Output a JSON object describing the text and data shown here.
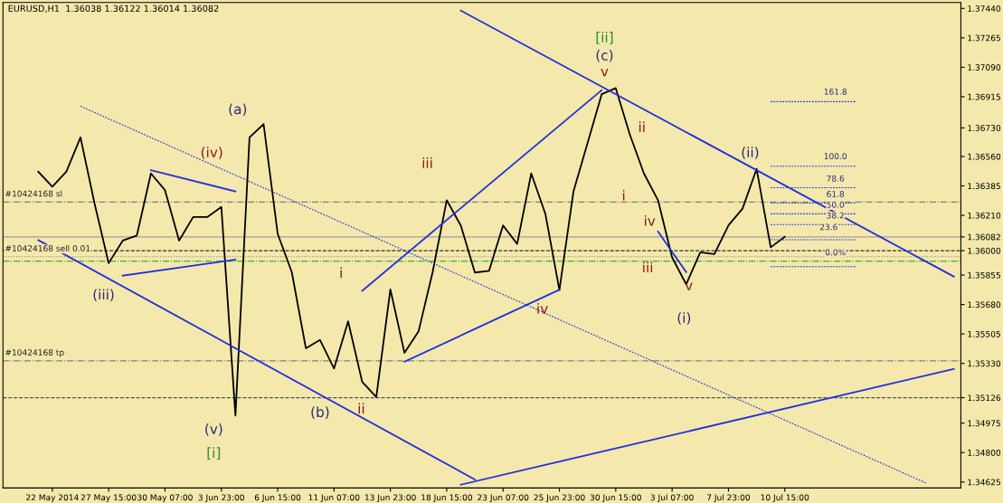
{
  "chart_data": {
    "type": "line",
    "title": "EURUSD,H1  1.36038 1.36122 1.36014 1.36082",
    "categories": [
      null,
      "22 May 2014",
      null,
      null,
      null,
      "27 May 15:00",
      null,
      null,
      null,
      "30 May 07:00",
      null,
      null,
      null,
      "3 Jun 23:00",
      null,
      null,
      null,
      "6 Jun 15:00",
      null,
      null,
      null,
      "11 Jun 07:00",
      null,
      null,
      null,
      "13 Jun 23:00",
      null,
      null,
      null,
      "18 Jun 15:00",
      null,
      null,
      null,
      "23 Jun 07:00",
      null,
      null,
      null,
      "25 Jun 23:00",
      null,
      null,
      null,
      "30 Jun 15:00",
      null,
      null,
      null,
      "3 Jul 07:00",
      null,
      null,
      null,
      "7 Jul 23:00",
      null,
      null,
      null,
      "10 Jul 15:00",
      null,
      null,
      null,
      null,
      null,
      null,
      null,
      null,
      null,
      null,
      null,
      null
    ],
    "ylim": [
      1.3459,
      1.37475
    ],
    "yticks": [
      {
        "value": 1.3744,
        "label": "1.37440"
      },
      {
        "value": 1.37265,
        "label": "1.37265"
      },
      {
        "value": 1.3709,
        "label": "1.37090"
      },
      {
        "value": 1.36915,
        "label": "1.36915"
      },
      {
        "value": 1.3673,
        "label": "1.36730"
      },
      {
        "value": 1.3656,
        "label": "1.36560"
      },
      {
        "value": 1.36385,
        "label": "1.36385"
      },
      {
        "value": 1.3621,
        "label": "1.36210"
      },
      {
        "value": 1.36082,
        "label": "1.36082"
      },
      {
        "value": 1.36,
        "label": "1.36000"
      },
      {
        "value": 1.35855,
        "label": "1.35855"
      },
      {
        "value": 1.3568,
        "label": "1.35680"
      },
      {
        "value": 1.35505,
        "label": "1.35505"
      },
      {
        "value": 1.3533,
        "label": "1.35330"
      },
      {
        "value": 1.35126,
        "label": "1.35126"
      },
      {
        "value": 1.34975,
        "label": "1.34975"
      },
      {
        "value": 1.348,
        "label": "1.34800"
      },
      {
        "value": 1.34625,
        "label": "1.34625"
      }
    ],
    "grid": false,
    "series": [
      {
        "color": "#000000",
        "values": [
          1.3647,
          1.3638,
          1.3647,
          1.36673,
          1.3628,
          1.35926,
          1.3606,
          1.3609,
          1.36459,
          1.3636,
          1.3606,
          1.362,
          1.362,
          1.3626,
          1.3502,
          1.36673,
          1.36752,
          1.361,
          1.35873,
          1.3542,
          1.3547,
          1.353,
          1.3558,
          1.3522,
          1.3513,
          1.3577,
          1.35393,
          1.3552,
          1.35873,
          1.363,
          1.3615,
          1.3587,
          1.3588,
          1.3615,
          1.3604,
          1.36459,
          1.3622,
          1.35766,
          1.36353,
          1.3664,
          1.3693,
          1.36966,
          1.3669,
          1.36459,
          1.363,
          1.3596,
          1.358,
          1.3599,
          1.3598,
          1.3615,
          1.3625,
          1.36486,
          1.3602,
          1.36082,
          null,
          null,
          null,
          null,
          null,
          null,
          null,
          null,
          null,
          null,
          null,
          null
        ]
      },
      {
        "color": "#1f2fdc",
        "values": [
          null,
          null,
          null,
          null,
          null,
          null,
          null,
          null,
          null,
          null,
          null,
          null,
          null,
          null,
          null,
          null,
          null,
          null,
          null,
          null,
          null,
          null,
          null,
          null,
          null,
          null,
          null,
          null,
          null,
          null,
          1.37427,
          null,
          null,
          null,
          null,
          null,
          null,
          null,
          null,
          null,
          null,
          null,
          null,
          null,
          null,
          null,
          null,
          null,
          null,
          null,
          null,
          null,
          null,
          null,
          null,
          null,
          null,
          null,
          null,
          null,
          null,
          null,
          null,
          null,
          null,
          1.35846
        ]
      },
      {
        "color": "#1f2fdc",
        "values": [
          1.36063,
          null,
          null,
          null,
          null,
          null,
          null,
          null,
          null,
          null,
          null,
          null,
          null,
          null,
          null,
          null,
          null,
          null,
          null,
          null,
          null,
          null,
          null,
          null,
          null,
          null,
          null,
          null,
          null,
          null,
          null,
          1.3464,
          null,
          null,
          null,
          null,
          null,
          null,
          null,
          null,
          null,
          null,
          null,
          null,
          null,
          null,
          null,
          null,
          null,
          null,
          null,
          null,
          null,
          null,
          null,
          null,
          null,
          null,
          null,
          null,
          null,
          null,
          null,
          null,
          null,
          null
        ]
      },
      {
        "color": "#1f2fdc",
        "values": [
          null,
          null,
          null,
          null,
          null,
          null,
          null,
          null,
          null,
          null,
          null,
          null,
          null,
          null,
          null,
          null,
          null,
          null,
          null,
          null,
          null,
          null,
          null,
          null,
          null,
          null,
          null,
          null,
          null,
          null,
          1.34609,
          null,
          null,
          null,
          null,
          null,
          null,
          null,
          null,
          null,
          null,
          null,
          null,
          null,
          null,
          null,
          null,
          null,
          null,
          null,
          null,
          null,
          null,
          null,
          null,
          null,
          null,
          null,
          null,
          null,
          null,
          null,
          null,
          null,
          null,
          1.35297
        ]
      },
      {
        "color": "#1f2fdc",
        "line_style": "dotted",
        "values": [
          null,
          null,
          null,
          1.36859,
          null,
          null,
          null,
          null,
          null,
          null,
          null,
          null,
          null,
          null,
          null,
          null,
          null,
          null,
          null,
          null,
          null,
          null,
          null,
          null,
          null,
          null,
          null,
          null,
          null,
          null,
          null,
          null,
          null,
          null,
          null,
          null,
          null,
          null,
          null,
          null,
          null,
          null,
          null,
          null,
          null,
          null,
          null,
          null,
          null,
          null,
          null,
          null,
          null,
          null,
          null,
          null,
          null,
          null,
          null,
          null,
          null,
          null,
          null,
          1.3462,
          null,
          null
        ]
      },
      {
        "color": "#1f2fdc",
        "values": [
          null,
          null,
          null,
          null,
          null,
          null,
          null,
          null,
          1.36479,
          null,
          null,
          null,
          null,
          null,
          1.36352,
          null,
          null,
          null,
          null,
          null,
          null,
          null,
          null,
          null,
          null,
          null,
          null,
          null,
          null,
          null,
          null,
          null,
          null,
          null,
          null,
          null,
          null,
          null,
          null,
          null,
          null,
          null,
          null,
          null,
          null,
          null,
          null,
          null,
          null,
          null,
          null,
          null,
          null,
          null,
          null,
          null,
          null,
          null,
          null,
          null,
          null,
          null,
          null,
          null,
          null,
          null
        ]
      },
      {
        "color": "#1f2fdc",
        "values": [
          null,
          null,
          null,
          null,
          null,
          null,
          1.35852,
          null,
          null,
          null,
          null,
          null,
          null,
          null,
          1.35947,
          null,
          null,
          null,
          null,
          null,
          null,
          null,
          null,
          null,
          null,
          null,
          null,
          null,
          null,
          null,
          null,
          null,
          null,
          null,
          null,
          null,
          null,
          null,
          null,
          null,
          null,
          null,
          null,
          null,
          null,
          null,
          null,
          null,
          null,
          null,
          null,
          null,
          null,
          null,
          null,
          null,
          null,
          null,
          null,
          null,
          null,
          null,
          null,
          null,
          null,
          null
        ]
      },
      {
        "color": "#1f2fdc",
        "values": [
          null,
          null,
          null,
          null,
          null,
          null,
          null,
          null,
          null,
          null,
          null,
          null,
          null,
          null,
          null,
          null,
          null,
          null,
          null,
          null,
          null,
          null,
          null,
          1.35762,
          null,
          null,
          null,
          null,
          null,
          null,
          null,
          null,
          null,
          null,
          null,
          null,
          null,
          null,
          null,
          null,
          1.36954,
          null,
          null,
          null,
          null,
          null,
          null,
          null,
          null,
          null,
          null,
          null,
          null,
          null,
          null,
          null,
          null,
          null,
          null,
          null,
          null,
          null,
          null,
          null,
          null,
          null
        ]
      },
      {
        "color": "#1f2fdc",
        "values": [
          null,
          null,
          null,
          null,
          null,
          null,
          null,
          null,
          null,
          null,
          null,
          null,
          null,
          null,
          null,
          null,
          null,
          null,
          null,
          null,
          null,
          null,
          null,
          null,
          null,
          null,
          1.3534,
          null,
          null,
          null,
          null,
          null,
          null,
          null,
          null,
          null,
          null,
          1.35768,
          null,
          null,
          null,
          null,
          null,
          null,
          null,
          null,
          null,
          null,
          null,
          null,
          null,
          null,
          null,
          null,
          null,
          null,
          null,
          null,
          null,
          null,
          null,
          null,
          null,
          null,
          null,
          null
        ]
      },
      {
        "color": "#1f2fdc",
        "values": [
          null,
          null,
          null,
          null,
          null,
          null,
          null,
          null,
          null,
          null,
          null,
          null,
          null,
          null,
          null,
          null,
          null,
          null,
          null,
          null,
          null,
          null,
          null,
          null,
          null,
          null,
          null,
          null,
          null,
          null,
          null,
          null,
          null,
          null,
          null,
          null,
          null,
          null,
          null,
          null,
          null,
          null,
          null,
          null,
          1.36113,
          null,
          1.35873,
          null,
          null,
          null,
          null,
          null,
          null,
          null,
          null,
          null,
          null,
          null,
          null,
          null,
          null,
          null,
          null,
          null,
          null,
          null
        ]
      },
      {
        "color": "#1f2fdc",
        "line_style": "dotted",
        "values": [
          null,
          null,
          null,
          null,
          null,
          null,
          null,
          null,
          null,
          null,
          null,
          null,
          null,
          null,
          null,
          null,
          null,
          null,
          null,
          null,
          null,
          null,
          null,
          null,
          null,
          null,
          null,
          null,
          null,
          null,
          null,
          null,
          null,
          null,
          null,
          null,
          null,
          null,
          null,
          null,
          null,
          null,
          null,
          null,
          null,
          null,
          null,
          null,
          null,
          null,
          null,
          null,
          1.36886,
          null,
          null,
          null,
          null,
          null,
          1.36886,
          null,
          null,
          null,
          null,
          null,
          null,
          null
        ]
      },
      {
        "color": "#1f2fdc",
        "line_style": "dotted",
        "values": [
          null,
          null,
          null,
          null,
          null,
          null,
          null,
          null,
          null,
          null,
          null,
          null,
          null,
          null,
          null,
          null,
          null,
          null,
          null,
          null,
          null,
          null,
          null,
          null,
          null,
          null,
          null,
          null,
          null,
          null,
          null,
          null,
          null,
          null,
          null,
          null,
          null,
          null,
          null,
          null,
          null,
          null,
          null,
          null,
          null,
          null,
          null,
          null,
          null,
          null,
          null,
          null,
          1.36502,
          null,
          null,
          null,
          null,
          null,
          1.36502,
          null,
          null,
          null,
          null,
          null,
          null,
          null
        ]
      },
      {
        "color": "#1f2fdc",
        "line_style": "dotted",
        "values": [
          null,
          null,
          null,
          null,
          null,
          null,
          null,
          null,
          null,
          null,
          null,
          null,
          null,
          null,
          null,
          null,
          null,
          null,
          null,
          null,
          null,
          null,
          null,
          null,
          null,
          null,
          null,
          null,
          null,
          null,
          null,
          null,
          null,
          null,
          null,
          null,
          null,
          null,
          null,
          null,
          null,
          null,
          null,
          null,
          null,
          null,
          null,
          null,
          null,
          null,
          null,
          null,
          1.36374,
          null,
          null,
          null,
          null,
          null,
          1.36374,
          null,
          null,
          null,
          null,
          null,
          null,
          null
        ]
      },
      {
        "color": "#1f2fdc",
        "line_style": "dotted",
        "values": [
          null,
          null,
          null,
          null,
          null,
          null,
          null,
          null,
          null,
          null,
          null,
          null,
          null,
          null,
          null,
          null,
          null,
          null,
          null,
          null,
          null,
          null,
          null,
          null,
          null,
          null,
          null,
          null,
          null,
          null,
          null,
          null,
          null,
          null,
          null,
          null,
          null,
          null,
          null,
          null,
          null,
          null,
          null,
          null,
          null,
          null,
          null,
          null,
          null,
          null,
          null,
          null,
          1.36283,
          null,
          null,
          null,
          null,
          null,
          1.36283,
          null,
          null,
          null,
          null,
          null,
          null,
          null
        ]
      },
      {
        "color": "#1f2fdc",
        "line_style": "dotted",
        "values": [
          null,
          null,
          null,
          null,
          null,
          null,
          null,
          null,
          null,
          null,
          null,
          null,
          null,
          null,
          null,
          null,
          null,
          null,
          null,
          null,
          null,
          null,
          null,
          null,
          null,
          null,
          null,
          null,
          null,
          null,
          null,
          null,
          null,
          null,
          null,
          null,
          null,
          null,
          null,
          null,
          null,
          null,
          null,
          null,
          null,
          null,
          null,
          null,
          null,
          null,
          null,
          null,
          1.36219,
          null,
          null,
          null,
          null,
          null,
          1.36219,
          null,
          null,
          null,
          null,
          null,
          null,
          null
        ]
      },
      {
        "color": "#1f2fdc",
        "line_style": "dotted",
        "values": [
          null,
          null,
          null,
          null,
          null,
          null,
          null,
          null,
          null,
          null,
          null,
          null,
          null,
          null,
          null,
          null,
          null,
          null,
          null,
          null,
          null,
          null,
          null,
          null,
          null,
          null,
          null,
          null,
          null,
          null,
          null,
          null,
          null,
          null,
          null,
          null,
          null,
          null,
          null,
          null,
          null,
          null,
          null,
          null,
          null,
          null,
          null,
          null,
          null,
          null,
          null,
          null,
          1.36155,
          null,
          null,
          null,
          null,
          null,
          1.36155,
          null,
          null,
          null,
          null,
          null,
          null,
          null
        ]
      },
      {
        "color": "#1f2fdc",
        "line_style": "dotted",
        "values": [
          null,
          null,
          null,
          null,
          null,
          null,
          null,
          null,
          null,
          null,
          null,
          null,
          null,
          null,
          null,
          null,
          null,
          null,
          null,
          null,
          null,
          null,
          null,
          null,
          null,
          null,
          null,
          null,
          null,
          null,
          null,
          null,
          null,
          null,
          null,
          null,
          null,
          null,
          null,
          null,
          null,
          null,
          null,
          null,
          null,
          null,
          null,
          null,
          null,
          null,
          null,
          null,
          1.36065,
          null,
          null,
          null,
          null,
          null,
          1.36065,
          null,
          null,
          null,
          null,
          null,
          null,
          null
        ]
      },
      {
        "color": "#1f2fdc",
        "line_style": "dotted",
        "values": [
          null,
          null,
          null,
          null,
          null,
          null,
          null,
          null,
          null,
          null,
          null,
          null,
          null,
          null,
          null,
          null,
          null,
          null,
          null,
          null,
          null,
          null,
          null,
          null,
          null,
          null,
          null,
          null,
          null,
          null,
          null,
          null,
          null,
          null,
          null,
          null,
          null,
          null,
          null,
          null,
          null,
          null,
          null,
          null,
          null,
          null,
          null,
          null,
          null,
          null,
          null,
          null,
          1.35905,
          null,
          null,
          null,
          null,
          null,
          1.35905,
          null,
          null,
          null,
          null,
          null,
          null,
          null
        ]
      }
    ],
    "ref_lines": [
      {
        "axis": "y",
        "value": 1.36289,
        "label": "#10424168 sl",
        "color": "#808080",
        "line_style": "dashdot"
      },
      {
        "axis": "y",
        "value": 1.36082,
        "color": "#a0a0a0",
        "line_style": "solid"
      },
      {
        "axis": "y",
        "value": 1.36,
        "color": "#333333",
        "line_style": "dashed"
      },
      {
        "axis": "y",
        "value": 1.35964,
        "label": "#10424168 sell 0.01",
        "color": "#808080",
        "line_style": "dotted"
      },
      {
        "axis": "y",
        "value": 1.35937,
        "color": "#1a9a1a",
        "line_style": "dashdot"
      },
      {
        "axis": "y",
        "value": 1.35345,
        "label": "#10424168 tp",
        "color": "#808080",
        "line_style": "dashdot"
      },
      {
        "axis": "y",
        "value": 1.35126,
        "color": "#555555",
        "line_style": "dashed"
      }
    ],
    "annotations": [
      "(a)",
      "(iv)",
      "(iii)",
      "(v)",
      "[i]",
      "(b)",
      "ii",
      "i",
      "iii",
      "iv",
      "[ii]",
      "(c)",
      "v",
      "ii",
      "i",
      "iv",
      "iii",
      "v",
      "(i)",
      "(ii)",
      "161.8",
      "100.0",
      "78.6",
      "61.8",
      "50.0",
      "38.2",
      "23.6",
      "0.0%"
    ]
  }
}
